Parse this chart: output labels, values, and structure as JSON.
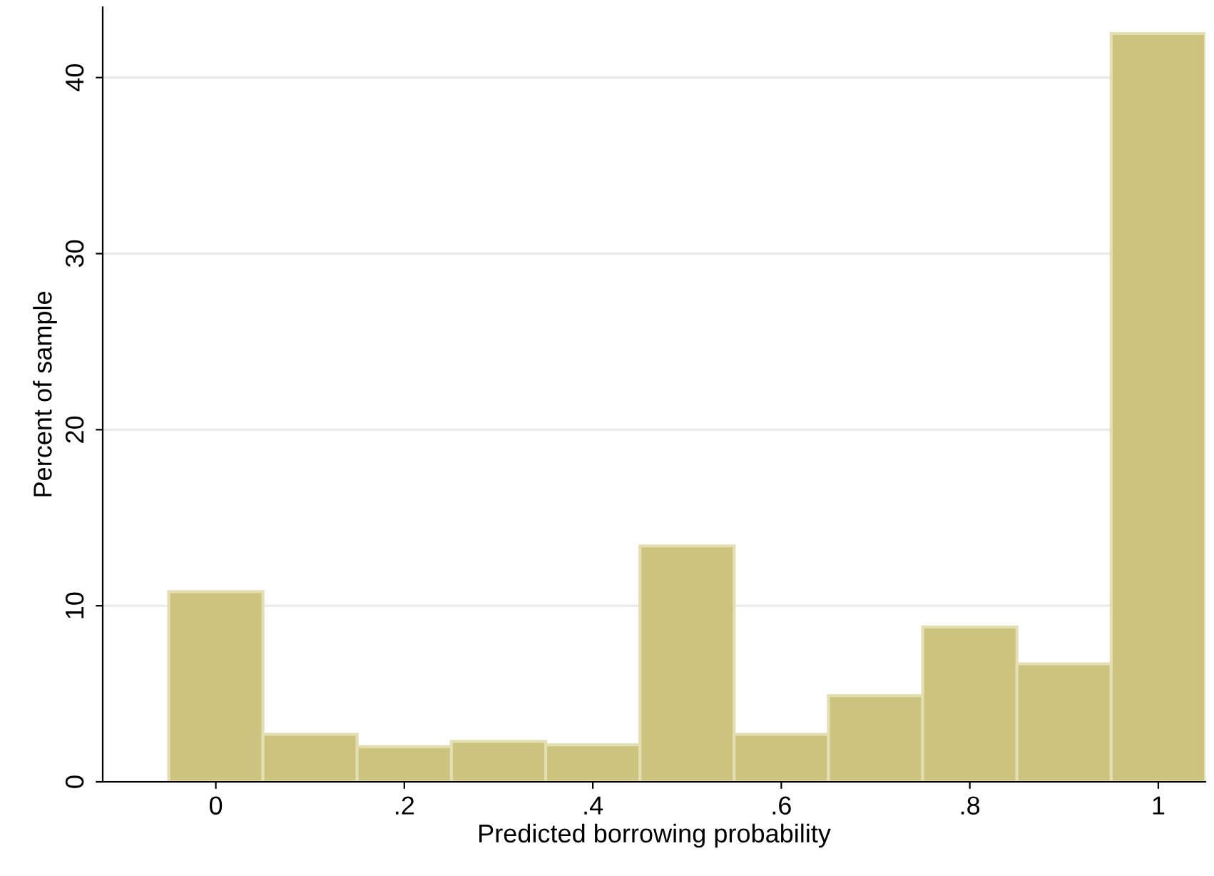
{
  "chart_data": {
    "type": "histogram",
    "xlabel": "Predicted borrowing probability",
    "ylabel": "Percent of sample",
    "bins": [
      -0.05,
      0.05,
      0.15,
      0.25,
      0.35,
      0.45,
      0.55,
      0.65,
      0.75,
      0.85,
      0.95,
      1.05
    ],
    "values": [
      10.8,
      2.7,
      2.0,
      2.3,
      2.1,
      13.4,
      2.7,
      4.9,
      8.8,
      6.7,
      42.5
    ],
    "color": "#cbc37e",
    "xlim": [
      -0.12,
      1.05
    ],
    "ylim": [
      0,
      44
    ],
    "xticks": [
      0,
      {
        "value": 0.2,
        "label": ".2"
      },
      {
        "value": 0.4,
        "label": ".4"
      },
      {
        "value": 0.6,
        "label": ".6"
      },
      {
        "value": 0.8,
        "label": ".8"
      },
      1
    ],
    "yticks": [
      0,
      10,
      20,
      30,
      40
    ],
    "grid": "y"
  }
}
